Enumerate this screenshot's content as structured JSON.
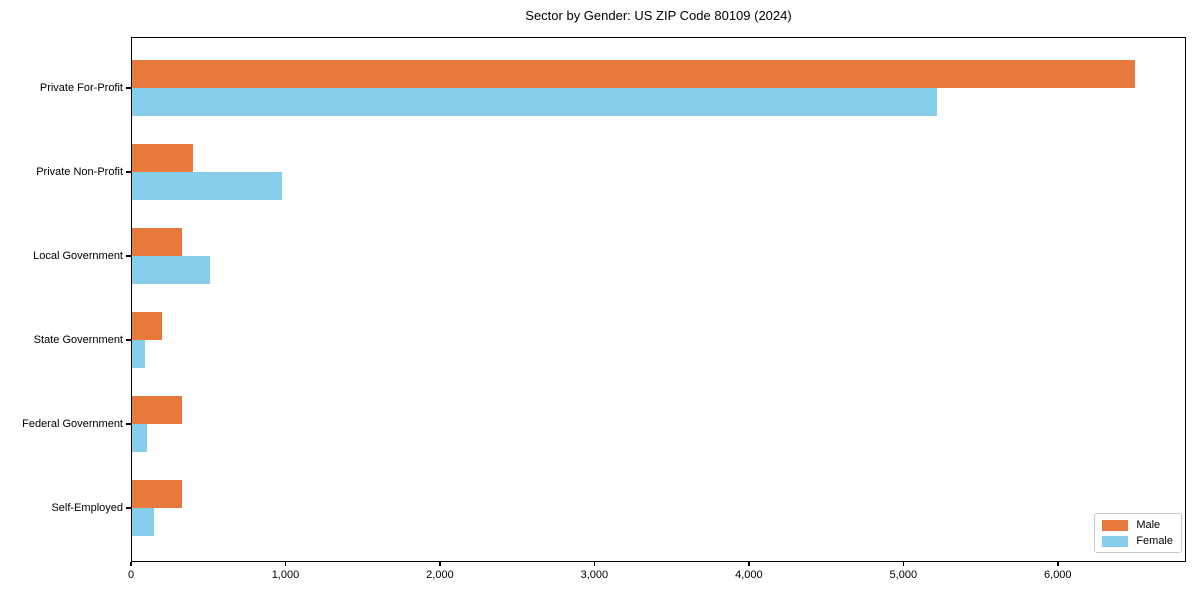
{
  "chart_data": {
    "type": "bar",
    "orientation": "horizontal",
    "title": "Sector by Gender: US ZIP Code 80109 (2024)",
    "categories": [
      "Private For-Profit",
      "Private Non-Profit",
      "Local Government",
      "State Government",
      "Federal Government",
      "Self-Employed"
    ],
    "series": [
      {
        "name": "Male",
        "color": "#E8793C",
        "values": [
          6500,
          400,
          330,
          200,
          330,
          330
        ]
      },
      {
        "name": "Female",
        "color": "#87CEEB",
        "values": [
          5220,
          975,
          510,
          90,
          105,
          150
        ]
      }
    ],
    "xlabel": "",
    "ylabel": "",
    "xlim": [
      0,
      6830
    ],
    "xticks": [
      0,
      1000,
      2000,
      3000,
      4000,
      5000,
      6000
    ],
    "xtick_labels": [
      "0",
      "1,000",
      "2,000",
      "3,000",
      "4,000",
      "5,000",
      "6,000"
    ],
    "grid": false,
    "legend": {
      "position": "lower right",
      "entries": [
        "Male",
        "Female"
      ]
    },
    "colors": {
      "axis": "#000000",
      "background": "#ffffff",
      "legend_border": "#c9c9c9"
    }
  }
}
